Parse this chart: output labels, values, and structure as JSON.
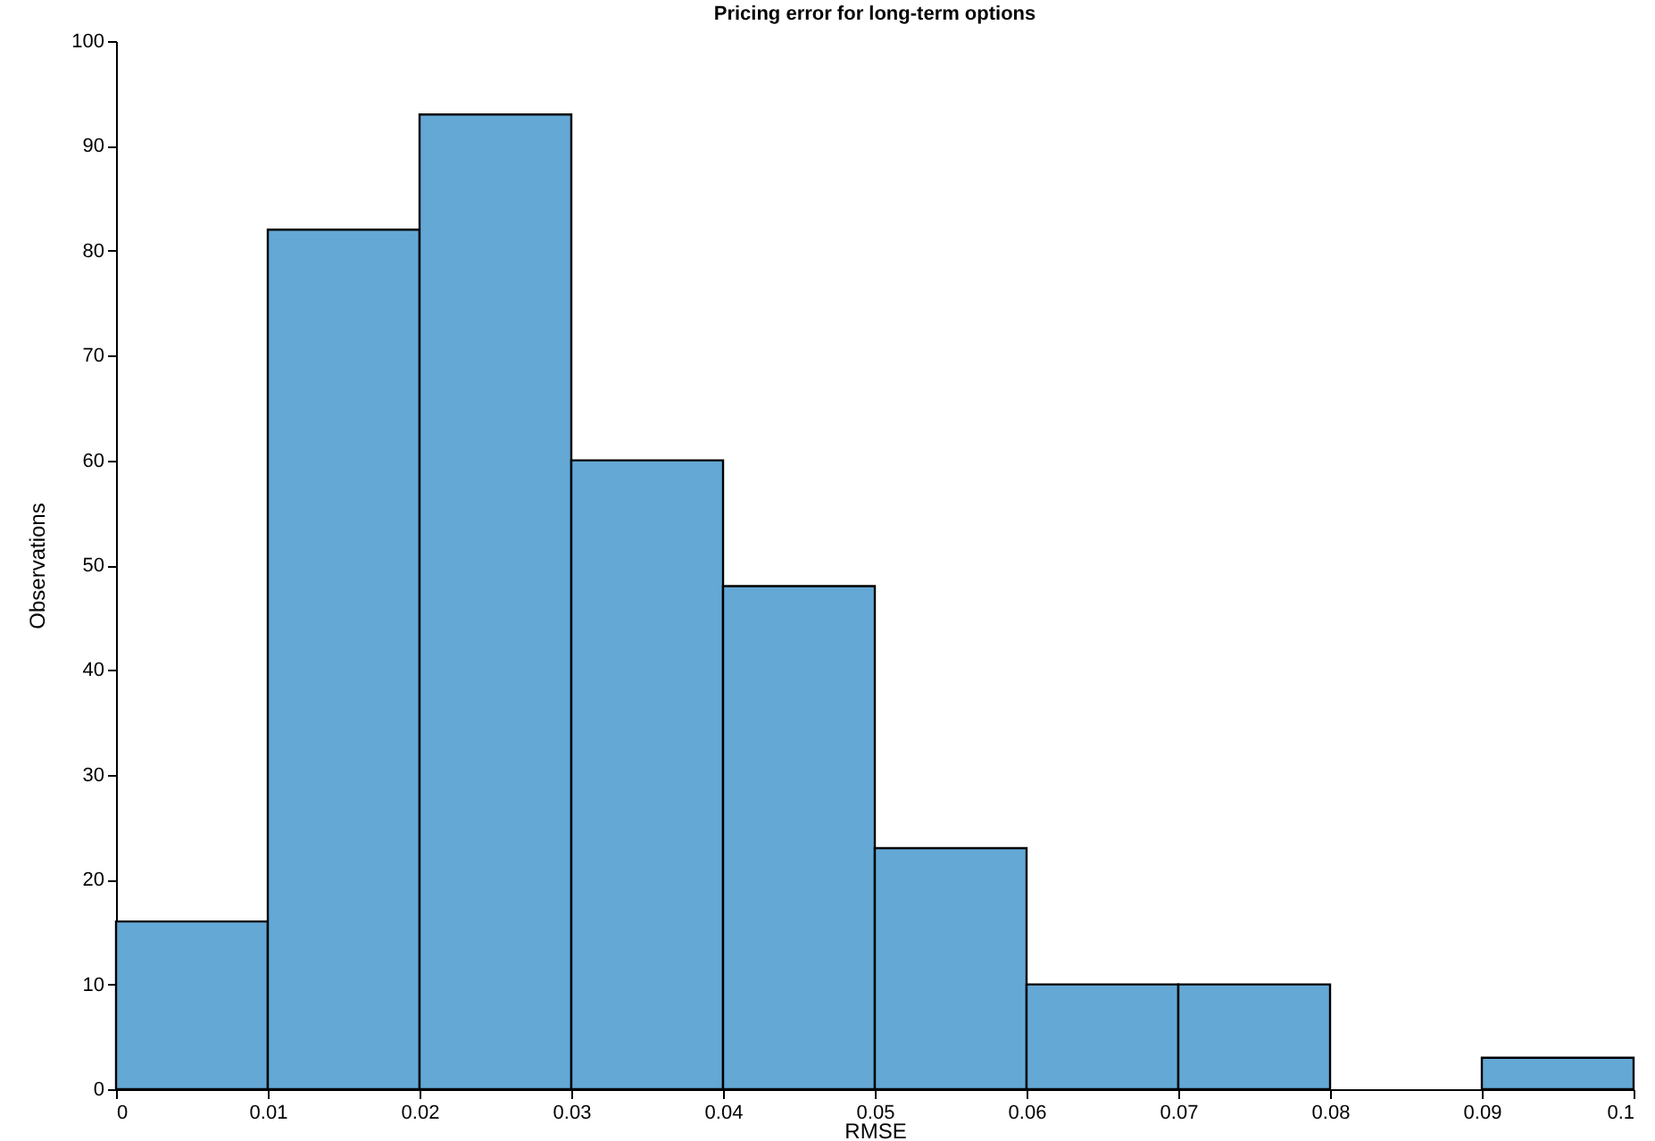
{
  "chart_data": {
    "type": "histogram",
    "title": "Pricing error for long-term options",
    "xlabel": "RMSE",
    "ylabel": "Observations",
    "bins": [
      0,
      0.01,
      0.02,
      0.03,
      0.04,
      0.05,
      0.06,
      0.07,
      0.08,
      0.09,
      0.1
    ],
    "values": [
      16,
      82,
      93,
      60,
      48,
      23,
      10,
      10,
      0,
      3
    ],
    "color": "#64a8d6",
    "xlim": [
      0,
      0.1
    ],
    "xticks": [
      0,
      0.01,
      0.02,
      0.03,
      0.04,
      0.05,
      0.06,
      0.07,
      0.08,
      0.09,
      0.1
    ],
    "ylim": [
      0,
      100
    ],
    "yticks": [
      0,
      10,
      20,
      30,
      40,
      50,
      60,
      70,
      80,
      90,
      100
    ],
    "grid": false
  }
}
